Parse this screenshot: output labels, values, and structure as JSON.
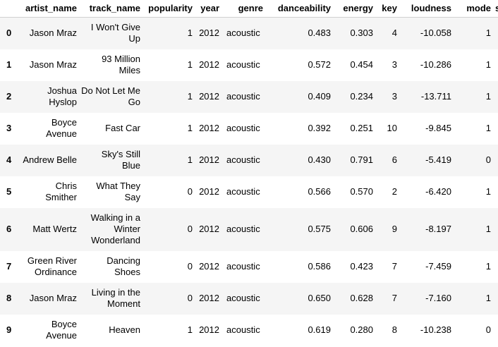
{
  "table": {
    "columns": [
      "",
      "artist_name",
      "track_name",
      "popularity",
      "year",
      "genre",
      "danceability",
      "energy",
      "key",
      "loudness",
      "mode",
      "s"
    ],
    "rows": [
      {
        "index": "0",
        "artist_name": "Jason Mraz",
        "track_name": "I Won't Give Up",
        "popularity": "1",
        "year": "2012",
        "genre": "acoustic",
        "danceability": "0.483",
        "energy": "0.303",
        "key": "4",
        "loudness": "-10.058",
        "mode": "1"
      },
      {
        "index": "1",
        "artist_name": "Jason Mraz",
        "track_name": "93 Million Miles",
        "popularity": "1",
        "year": "2012",
        "genre": "acoustic",
        "danceability": "0.572",
        "energy": "0.454",
        "key": "3",
        "loudness": "-10.286",
        "mode": "1"
      },
      {
        "index": "2",
        "artist_name": "Joshua Hyslop",
        "track_name": "Do Not Let Me Go",
        "popularity": "1",
        "year": "2012",
        "genre": "acoustic",
        "danceability": "0.409",
        "energy": "0.234",
        "key": "3",
        "loudness": "-13.711",
        "mode": "1"
      },
      {
        "index": "3",
        "artist_name": "Boyce Avenue",
        "track_name": "Fast Car",
        "popularity": "1",
        "year": "2012",
        "genre": "acoustic",
        "danceability": "0.392",
        "energy": "0.251",
        "key": "10",
        "loudness": "-9.845",
        "mode": "1"
      },
      {
        "index": "4",
        "artist_name": "Andrew Belle",
        "track_name": "Sky's Still Blue",
        "popularity": "1",
        "year": "2012",
        "genre": "acoustic",
        "danceability": "0.430",
        "energy": "0.791",
        "key": "6",
        "loudness": "-5.419",
        "mode": "0"
      },
      {
        "index": "5",
        "artist_name": "Chris Smither",
        "track_name": "What They Say",
        "popularity": "0",
        "year": "2012",
        "genre": "acoustic",
        "danceability": "0.566",
        "energy": "0.570",
        "key": "2",
        "loudness": "-6.420",
        "mode": "1"
      },
      {
        "index": "6",
        "artist_name": "Matt Wertz",
        "track_name": "Walking in a Winter Wonderland",
        "popularity": "0",
        "year": "2012",
        "genre": "acoustic",
        "danceability": "0.575",
        "energy": "0.606",
        "key": "9",
        "loudness": "-8.197",
        "mode": "1"
      },
      {
        "index": "7",
        "artist_name": "Green River Ordinance",
        "track_name": "Dancing Shoes",
        "popularity": "0",
        "year": "2012",
        "genre": "acoustic",
        "danceability": "0.586",
        "energy": "0.423",
        "key": "7",
        "loudness": "-7.459",
        "mode": "1"
      },
      {
        "index": "8",
        "artist_name": "Jason Mraz",
        "track_name": "Living in the Moment",
        "popularity": "0",
        "year": "2012",
        "genre": "acoustic",
        "danceability": "0.650",
        "energy": "0.628",
        "key": "7",
        "loudness": "-7.160",
        "mode": "1"
      },
      {
        "index": "9",
        "artist_name": "Boyce Avenue",
        "track_name": "Heaven",
        "popularity": "1",
        "year": "2012",
        "genre": "acoustic",
        "danceability": "0.619",
        "energy": "0.280",
        "key": "8",
        "loudness": "-10.238",
        "mode": "0"
      }
    ]
  }
}
